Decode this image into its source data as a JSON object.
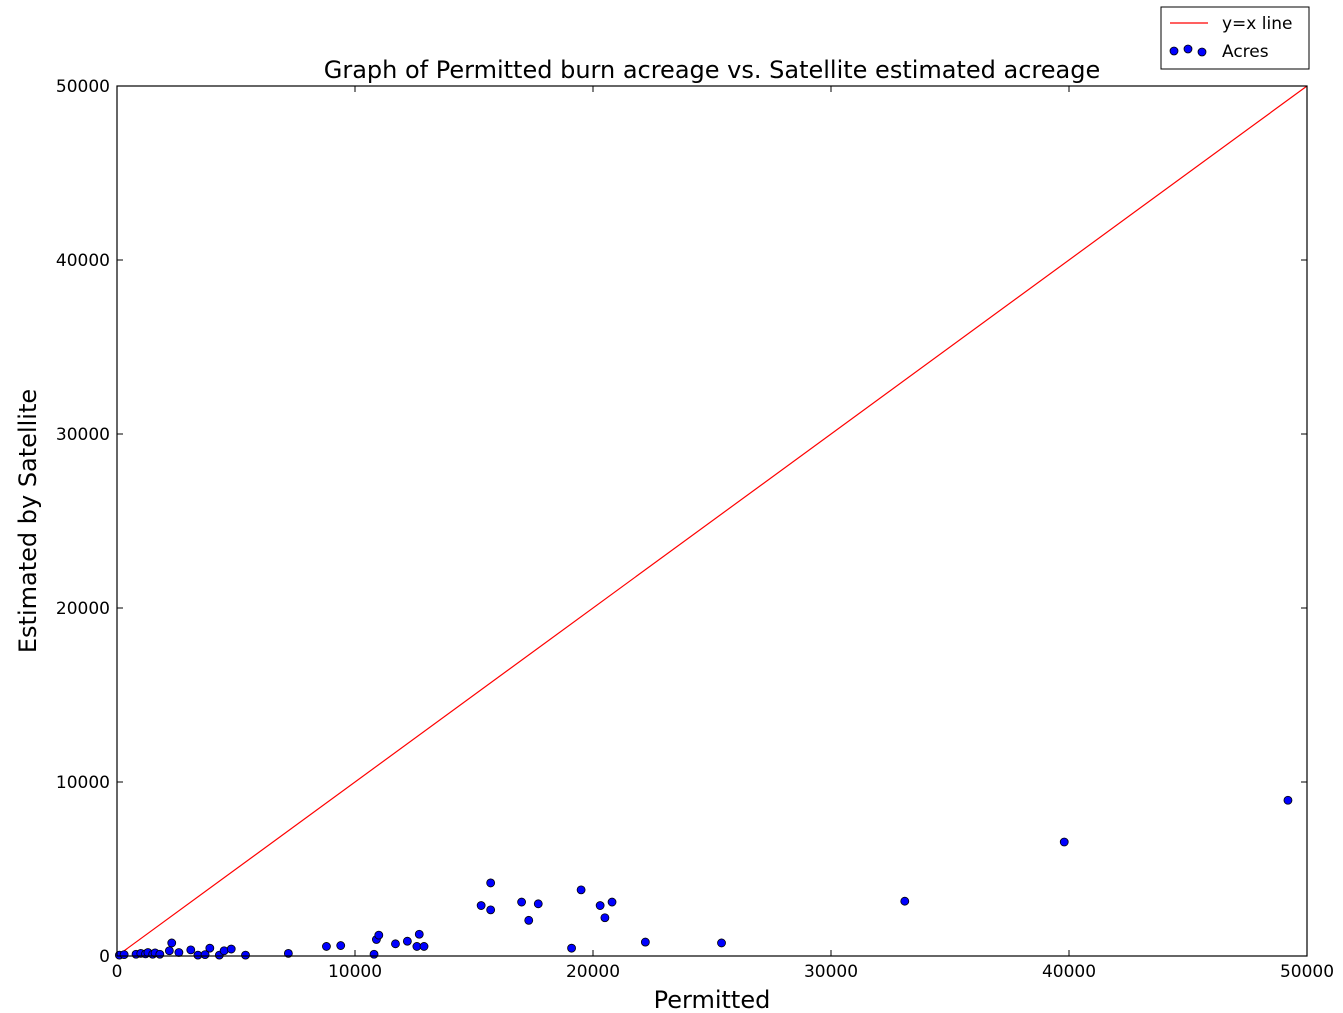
{
  "chart_data": {
    "type": "scatter",
    "title": "Graph of Permitted burn acreage vs. Satellite estimated acreage",
    "xlabel": "Permitted",
    "ylabel": "Estimated by Satellite",
    "xlim": [
      0,
      50000
    ],
    "ylim": [
      0,
      50000
    ],
    "xticks": [
      "0",
      "10000",
      "20000",
      "30000",
      "40000",
      "50000"
    ],
    "yticks": [
      "0",
      "10000",
      "20000",
      "30000",
      "40000",
      "50000"
    ],
    "grid": false,
    "legend_position": "top-right, outside axes",
    "legend": [
      {
        "label": "y=x line",
        "kind": "line",
        "color": "#ff0000"
      },
      {
        "label": "Acres",
        "kind": "scatter",
        "color": "#0000ff"
      }
    ],
    "series": [
      {
        "name": "y=x line",
        "kind": "line",
        "color": "#ff0000",
        "points": [
          [
            0,
            0
          ],
          [
            50000,
            50000
          ]
        ]
      },
      {
        "name": "Acres",
        "kind": "scatter",
        "color": "#0000ff",
        "points": [
          [
            100,
            50
          ],
          [
            300,
            80
          ],
          [
            800,
            100
          ],
          [
            1000,
            150
          ],
          [
            1200,
            120
          ],
          [
            1300,
            200
          ],
          [
            1500,
            100
          ],
          [
            1600,
            180
          ],
          [
            1800,
            100
          ],
          [
            2200,
            300
          ],
          [
            2300,
            750
          ],
          [
            2600,
            200
          ],
          [
            3100,
            350
          ],
          [
            3400,
            50
          ],
          [
            3700,
            80
          ],
          [
            3900,
            450
          ],
          [
            4300,
            50
          ],
          [
            4500,
            300
          ],
          [
            4800,
            400
          ],
          [
            5400,
            50
          ],
          [
            7200,
            150
          ],
          [
            8800,
            550
          ],
          [
            9400,
            600
          ],
          [
            10800,
            100
          ],
          [
            10900,
            950
          ],
          [
            11000,
            1200
          ],
          [
            11700,
            700
          ],
          [
            12200,
            850
          ],
          [
            12600,
            550
          ],
          [
            12700,
            1250
          ],
          [
            12900,
            550
          ],
          [
            15300,
            2900
          ],
          [
            15700,
            4200
          ],
          [
            15700,
            2650
          ],
          [
            17000,
            3100
          ],
          [
            17300,
            2050
          ],
          [
            17700,
            3000
          ],
          [
            19100,
            450
          ],
          [
            19500,
            3800
          ],
          [
            20300,
            2900
          ],
          [
            20500,
            2200
          ],
          [
            20800,
            3100
          ],
          [
            22200,
            800
          ],
          [
            25400,
            750
          ],
          [
            33100,
            3150
          ],
          [
            39800,
            6550
          ],
          [
            49200,
            8950
          ]
        ]
      }
    ]
  }
}
